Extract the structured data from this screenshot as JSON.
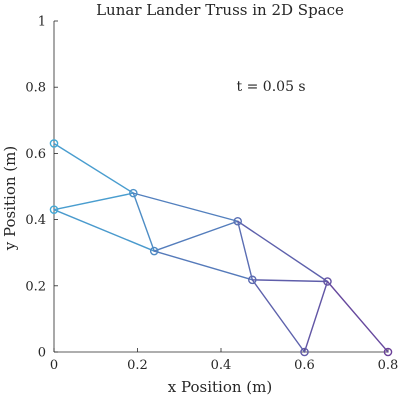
{
  "chart_data": {
    "type": "line",
    "title": "Lunar Lander Truss in 2D Space",
    "xlabel": "x Position (m)",
    "ylabel": "y Position (m)",
    "xlim": [
      0,
      0.8
    ],
    "ylim": [
      0,
      1
    ],
    "xticks": [
      0,
      0.2,
      0.4,
      0.6,
      0.8
    ],
    "yticks": [
      0,
      0.2,
      0.4,
      0.6,
      0.8,
      1
    ],
    "xtick_labels": [
      "0",
      "0.2",
      "0.4",
      "0.6",
      "0.8"
    ],
    "ytick_labels": [
      "0",
      "0.2",
      "0.4",
      "0.6",
      "0.8",
      "1"
    ],
    "annotation": "t = 0.05 s",
    "annotation_pos": [
      0.52,
      0.8
    ],
    "grid": false,
    "marker": "circle",
    "nodes": [
      {
        "x": 0.0,
        "y": 0.63
      },
      {
        "x": 0.0,
        "y": 0.43
      },
      {
        "x": 0.19,
        "y": 0.48
      },
      {
        "x": 0.24,
        "y": 0.305
      },
      {
        "x": 0.44,
        "y": 0.395
      },
      {
        "x": 0.475,
        "y": 0.218
      },
      {
        "x": 0.655,
        "y": 0.213
      },
      {
        "x": 0.6,
        "y": 0.0
      },
      {
        "x": 0.8,
        "y": 0.0
      }
    ],
    "members": [
      [
        0,
        2
      ],
      [
        1,
        2
      ],
      [
        1,
        3
      ],
      [
        2,
        3
      ],
      [
        2,
        4
      ],
      [
        3,
        4
      ],
      [
        3,
        5
      ],
      [
        4,
        5
      ],
      [
        4,
        6
      ],
      [
        5,
        6
      ],
      [
        5,
        7
      ],
      [
        6,
        7
      ],
      [
        6,
        8
      ]
    ],
    "colors": {
      "light": "#44aad6",
      "dark": "#6a3f98",
      "axes": "#262626"
    }
  }
}
